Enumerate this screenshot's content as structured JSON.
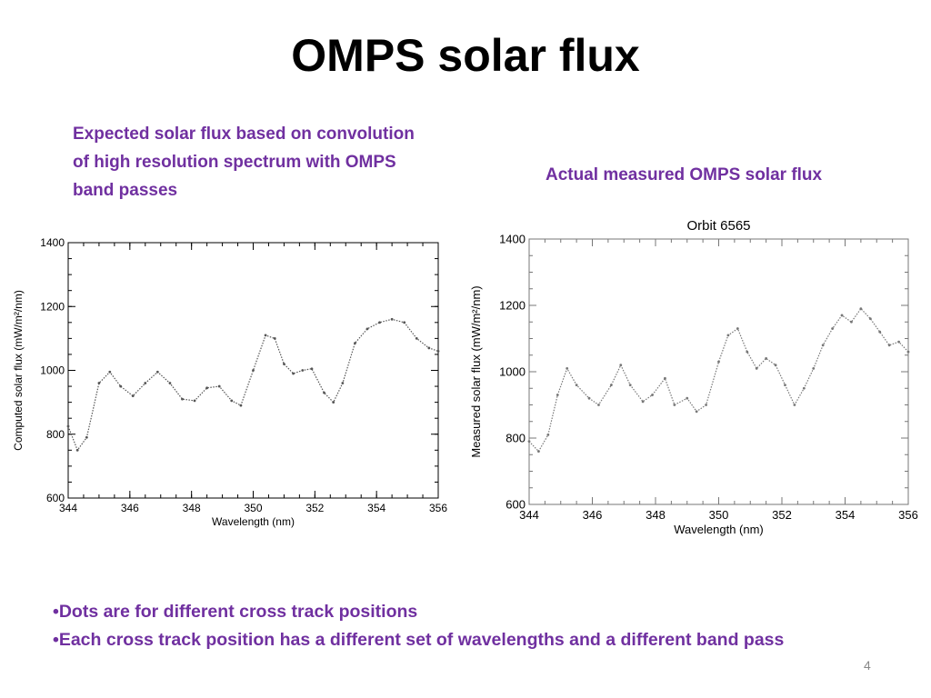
{
  "slide": {
    "title": "OMPS solar flux",
    "caption_left": "Expected solar flux based on convolution of high resolution spectrum with OMPS band passes",
    "caption_right": "Actual measured OMPS solar flux",
    "bullets": [
      "•Dots are for different cross track positions",
      "•Each cross track position has a different set of wavelengths and a different band pass"
    ],
    "page_number": "4"
  },
  "chart_data": [
    {
      "type": "scatter",
      "title": "",
      "xlabel": "Wavelength (nm)",
      "ylabel": "Computed solar flux (mW/m²/nm)",
      "xlim": [
        344,
        356
      ],
      "ylim": [
        600,
        1400
      ],
      "xticks": [
        344,
        346,
        348,
        350,
        352,
        354,
        356
      ],
      "yticks": [
        600,
        800,
        1000,
        1200,
        1400
      ],
      "grid": false,
      "series": [
        {
          "color": "#555555",
          "x": [
            344.0,
            344.3,
            344.6,
            345.0,
            345.35,
            345.7,
            346.1,
            346.5,
            346.9,
            347.3,
            347.7,
            348.1,
            348.5,
            348.9,
            349.3,
            349.6,
            350.0,
            350.4,
            350.7,
            351.0,
            351.3,
            351.6,
            351.9,
            352.3,
            352.6,
            352.9,
            353.3,
            353.7,
            354.1,
            354.5,
            354.9,
            355.3,
            355.7,
            356.0
          ],
          "y": [
            825,
            750,
            790,
            960,
            995,
            950,
            920,
            960,
            995,
            960,
            910,
            905,
            945,
            950,
            905,
            890,
            1000,
            1110,
            1100,
            1020,
            990,
            1000,
            1005,
            930,
            900,
            960,
            1085,
            1130,
            1150,
            1160,
            1150,
            1100,
            1070,
            1060
          ]
        }
      ]
    },
    {
      "type": "scatter",
      "title": "Orbit 6565",
      "xlabel": "Wavelength (nm)",
      "ylabel": "Measured solar flux (mW/m²/nm)",
      "xlim": [
        344,
        356
      ],
      "ylim": [
        600,
        1400
      ],
      "xticks": [
        344,
        346,
        348,
        350,
        352,
        354,
        356
      ],
      "yticks": [
        600,
        800,
        1000,
        1200,
        1400
      ],
      "grid": false,
      "series": [
        {
          "color": "#777777",
          "x": [
            344.0,
            344.3,
            344.6,
            344.9,
            345.2,
            345.5,
            345.9,
            346.2,
            346.6,
            346.9,
            347.2,
            347.6,
            347.9,
            348.3,
            348.6,
            349.0,
            349.3,
            349.6,
            350.0,
            350.3,
            350.6,
            350.9,
            351.2,
            351.5,
            351.8,
            352.1,
            352.4,
            352.7,
            353.0,
            353.3,
            353.6,
            353.9,
            354.2,
            354.5,
            354.8,
            355.1,
            355.4,
            355.7,
            356.0
          ],
          "y": [
            790,
            760,
            810,
            930,
            1010,
            960,
            920,
            900,
            960,
            1020,
            960,
            910,
            930,
            980,
            900,
            920,
            880,
            900,
            1030,
            1110,
            1130,
            1060,
            1010,
            1040,
            1020,
            960,
            900,
            950,
            1010,
            1080,
            1130,
            1170,
            1150,
            1190,
            1160,
            1120,
            1080,
            1090,
            1060
          ]
        }
      ]
    }
  ]
}
